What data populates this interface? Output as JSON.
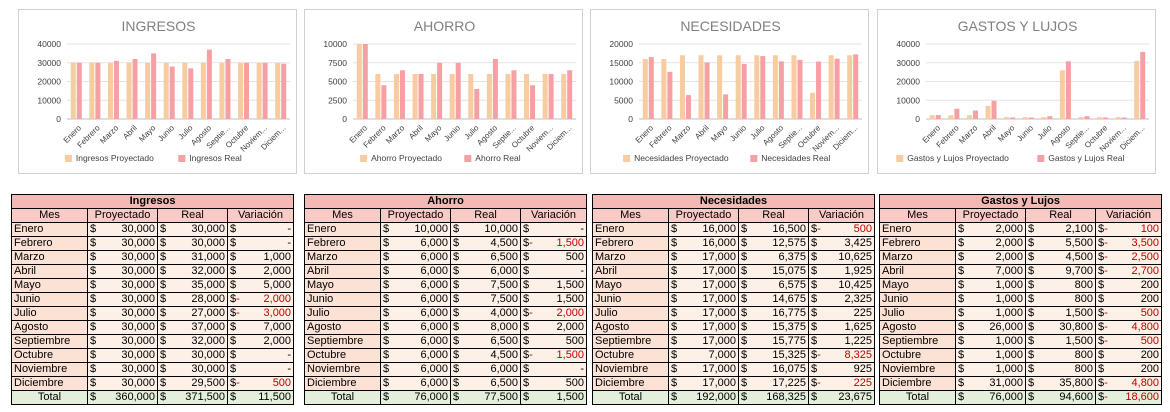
{
  "legend_suffix_proj": "Proyectado",
  "legend_suffix_real": "Real",
  "colors": {
    "proyectado": "#f8cba0",
    "real": "#f4a0a4"
  },
  "chart_data": [
    {
      "type": "bar",
      "title": "INGRESOS",
      "categories": [
        "Enero",
        "Febrero",
        "Marzo",
        "Abril",
        "Mayo",
        "Junio",
        "Julio",
        "Agosto",
        "Septie...",
        "Octubre",
        "Noviem...",
        "Diciem..."
      ],
      "yticks": [
        "0",
        "10000",
        "20000",
        "30000",
        "40000"
      ],
      "ylim": [
        0,
        40000
      ],
      "series": [
        {
          "name": "Ingresos Proyectado",
          "values": [
            30000,
            30000,
            30000,
            30000,
            30000,
            30000,
            30000,
            30000,
            30000,
            30000,
            30000,
            30000
          ]
        },
        {
          "name": "Ingresos Real",
          "values": [
            30000,
            30000,
            31000,
            32000,
            35000,
            28000,
            27000,
            37000,
            32000,
            30000,
            30000,
            29500
          ]
        }
      ]
    },
    {
      "type": "bar",
      "title": "AHORRO",
      "categories": [
        "Enero",
        "Febrero",
        "Marzo",
        "Abril",
        "Mayo",
        "Junio",
        "Julio",
        "Agosto",
        "Septie...",
        "Octubre",
        "Noviem...",
        "Diciem..."
      ],
      "yticks": [
        "0",
        "2500",
        "5000",
        "7500",
        "10000"
      ],
      "ylim": [
        0,
        10000
      ],
      "series": [
        {
          "name": "Ahorro Proyectado",
          "values": [
            10000,
            6000,
            6000,
            6000,
            6000,
            6000,
            6000,
            6000,
            6000,
            6000,
            6000,
            6000
          ]
        },
        {
          "name": "Ahorro Real",
          "values": [
            10000,
            4500,
            6500,
            6000,
            7500,
            7500,
            4000,
            8000,
            6500,
            4500,
            6000,
            6500
          ]
        }
      ]
    },
    {
      "type": "bar",
      "title": "NECESIDADES",
      "categories": [
        "Enero",
        "Febrero",
        "Marzo",
        "Abril",
        "Mayo",
        "Junio",
        "Julio",
        "Agosto",
        "Septie...",
        "Octubre",
        "Noviem...",
        "Diciem..."
      ],
      "yticks": [
        "0",
        "5000",
        "10000",
        "15000",
        "20000"
      ],
      "ylim": [
        0,
        20000
      ],
      "series": [
        {
          "name": "Necesidades Proyectado",
          "values": [
            16000,
            16000,
            17000,
            17000,
            17000,
            17000,
            17000,
            17000,
            17000,
            7000,
            17000,
            17000
          ]
        },
        {
          "name": "Necesidades Real",
          "values": [
            16500,
            12575,
            6375,
            15075,
            6575,
            14675,
            16775,
            15375,
            15775,
            15325,
            16075,
            17225
          ]
        }
      ]
    },
    {
      "type": "bar",
      "title": "GASTOS Y LUJOS",
      "categories": [
        "Enero",
        "Febrero",
        "Marzo",
        "Abril",
        "Mayo",
        "Junio",
        "Julio",
        "Agosto",
        "Septie...",
        "Octubre",
        "Noviem...",
        "Diciem..."
      ],
      "yticks": [
        "0",
        "10000",
        "20000",
        "30000",
        "40000"
      ],
      "ylim": [
        0,
        40000
      ],
      "series": [
        {
          "name": "Gastos y Lujos Proyectado",
          "values": [
            2000,
            2000,
            2000,
            7000,
            1000,
            1000,
            1000,
            26000,
            1000,
            1000,
            1000,
            31000
          ]
        },
        {
          "name": "Gastos y Lujos Real",
          "values": [
            2100,
            5500,
            4500,
            9700,
            800,
            800,
            1500,
            30800,
            1500,
            800,
            800,
            35800
          ]
        }
      ]
    }
  ],
  "tables": [
    {
      "title": "Ingresos",
      "headers": [
        "Mes",
        "Proyectado",
        "Real",
        "Variación"
      ],
      "rows": [
        {
          "mes": "Enero",
          "proy": "30,000",
          "real": "30,000",
          "var": "-",
          "neg": false
        },
        {
          "mes": "Febrero",
          "proy": "30,000",
          "real": "30,000",
          "var": "-",
          "neg": false
        },
        {
          "mes": "Marzo",
          "proy": "30,000",
          "real": "31,000",
          "var": "1,000",
          "neg": false
        },
        {
          "mes": "Abril",
          "proy": "30,000",
          "real": "32,000",
          "var": "2,000",
          "neg": false
        },
        {
          "mes": "Mayo",
          "proy": "30,000",
          "real": "35,000",
          "var": "5,000",
          "neg": false
        },
        {
          "mes": "Junio",
          "proy": "30,000",
          "real": "28,000",
          "var": "2,000",
          "neg": true
        },
        {
          "mes": "Julio",
          "proy": "30,000",
          "real": "27,000",
          "var": "3,000",
          "neg": true
        },
        {
          "mes": "Agosto",
          "proy": "30,000",
          "real": "37,000",
          "var": "7,000",
          "neg": false
        },
        {
          "mes": "Septiembre",
          "proy": "30,000",
          "real": "32,000",
          "var": "2,000",
          "neg": false
        },
        {
          "mes": "Octubre",
          "proy": "30,000",
          "real": "30,000",
          "var": "-",
          "neg": false
        },
        {
          "mes": "Noviembre",
          "proy": "30,000",
          "real": "30,000",
          "var": "-",
          "neg": false
        },
        {
          "mes": "Diciembre",
          "proy": "30,000",
          "real": "29,500",
          "var": "500",
          "neg": true
        }
      ],
      "total": {
        "mes": "Total",
        "proy": "360,000",
        "real": "371,500",
        "var": "11,500",
        "neg": false
      }
    },
    {
      "title": "Ahorro",
      "headers": [
        "Mes",
        "Proyectado",
        "Real",
        "Variación"
      ],
      "rows": [
        {
          "mes": "Enero",
          "proy": "10,000",
          "real": "10,000",
          "var": "-",
          "neg": false
        },
        {
          "mes": "Febrero",
          "proy": "6,000",
          "real": "4,500",
          "var": "1,500",
          "neg": true
        },
        {
          "mes": "Marzo",
          "proy": "6,000",
          "real": "6,500",
          "var": "500",
          "neg": false
        },
        {
          "mes": "Abril",
          "proy": "6,000",
          "real": "6,000",
          "var": "-",
          "neg": false
        },
        {
          "mes": "Mayo",
          "proy": "6,000",
          "real": "7,500",
          "var": "1,500",
          "neg": false
        },
        {
          "mes": "Junio",
          "proy": "6,000",
          "real": "7,500",
          "var": "1,500",
          "neg": false
        },
        {
          "mes": "Julio",
          "proy": "6,000",
          "real": "4,000",
          "var": "2,000",
          "neg": true
        },
        {
          "mes": "Agosto",
          "proy": "6,000",
          "real": "8,000",
          "var": "2,000",
          "neg": false
        },
        {
          "mes": "Septiembre",
          "proy": "6,000",
          "real": "6,500",
          "var": "500",
          "neg": false
        },
        {
          "mes": "Octubre",
          "proy": "6,000",
          "real": "4,500",
          "var": "1,500",
          "neg": true
        },
        {
          "mes": "Noviembre",
          "proy": "6,000",
          "real": "6,000",
          "var": "-",
          "neg": false
        },
        {
          "mes": "Diciembre",
          "proy": "6,000",
          "real": "6,500",
          "var": "500",
          "neg": false
        }
      ],
      "total": {
        "mes": "Total",
        "proy": "76,000",
        "real": "77,500",
        "var": "1,500",
        "neg": false
      }
    },
    {
      "title": "Necesidades",
      "headers": [
        "Mes",
        "Proyectado",
        "Real",
        "Variación"
      ],
      "rows": [
        {
          "mes": "Enero",
          "proy": "16,000",
          "real": "16,500",
          "var": "500",
          "neg": true
        },
        {
          "mes": "Febrero",
          "proy": "16,000",
          "real": "12,575",
          "var": "3,425",
          "neg": false
        },
        {
          "mes": "Marzo",
          "proy": "17,000",
          "real": "6,375",
          "var": "10,625",
          "neg": false
        },
        {
          "mes": "Abril",
          "proy": "17,000",
          "real": "15,075",
          "var": "1,925",
          "neg": false
        },
        {
          "mes": "Mayo",
          "proy": "17,000",
          "real": "6,575",
          "var": "10,425",
          "neg": false
        },
        {
          "mes": "Junio",
          "proy": "17,000",
          "real": "14,675",
          "var": "2,325",
          "neg": false
        },
        {
          "mes": "Julio",
          "proy": "17,000",
          "real": "16,775",
          "var": "225",
          "neg": false
        },
        {
          "mes": "Agosto",
          "proy": "17,000",
          "real": "15,375",
          "var": "1,625",
          "neg": false
        },
        {
          "mes": "Septiembre",
          "proy": "17,000",
          "real": "15,775",
          "var": "1,225",
          "neg": false
        },
        {
          "mes": "Octubre",
          "proy": "7,000",
          "real": "15,325",
          "var": "8,325",
          "neg": true
        },
        {
          "mes": "Noviembre",
          "proy": "17,000",
          "real": "16,075",
          "var": "925",
          "neg": false
        },
        {
          "mes": "Diciembre",
          "proy": "17,000",
          "real": "17,225",
          "var": "225",
          "neg": true
        }
      ],
      "total": {
        "mes": "Total",
        "proy": "192,000",
        "real": "168,325",
        "var": "23,675",
        "neg": false
      }
    },
    {
      "title": "Gastos y Lujos",
      "headers": [
        "Mes",
        "Proyectado",
        "Real",
        "Variación"
      ],
      "rows": [
        {
          "mes": "Enero",
          "proy": "2,000",
          "real": "2,100",
          "var": "100",
          "neg": true
        },
        {
          "mes": "Febrero",
          "proy": "2,000",
          "real": "5,500",
          "var": "3,500",
          "neg": true
        },
        {
          "mes": "Marzo",
          "proy": "2,000",
          "real": "4,500",
          "var": "2,500",
          "neg": true
        },
        {
          "mes": "Abril",
          "proy": "7,000",
          "real": "9,700",
          "var": "2,700",
          "neg": true
        },
        {
          "mes": "Mayo",
          "proy": "1,000",
          "real": "800",
          "var": "200",
          "neg": false
        },
        {
          "mes": "Junio",
          "proy": "1,000",
          "real": "800",
          "var": "200",
          "neg": false
        },
        {
          "mes": "Julio",
          "proy": "1,000",
          "real": "1,500",
          "var": "500",
          "neg": true
        },
        {
          "mes": "Agosto",
          "proy": "26,000",
          "real": "30,800",
          "var": "4,800",
          "neg": true
        },
        {
          "mes": "Septiembre",
          "proy": "1,000",
          "real": "1,500",
          "var": "500",
          "neg": true
        },
        {
          "mes": "Octubre",
          "proy": "1,000",
          "real": "800",
          "var": "200",
          "neg": false
        },
        {
          "mes": "Noviembre",
          "proy": "1,000",
          "real": "800",
          "var": "200",
          "neg": false
        },
        {
          "mes": "Diciembre",
          "proy": "31,000",
          "real": "35,800",
          "var": "4,800",
          "neg": true
        }
      ],
      "total": {
        "mes": "Total",
        "proy": "76,000",
        "real": "94,600",
        "var": "18,600",
        "neg": true
      }
    }
  ]
}
